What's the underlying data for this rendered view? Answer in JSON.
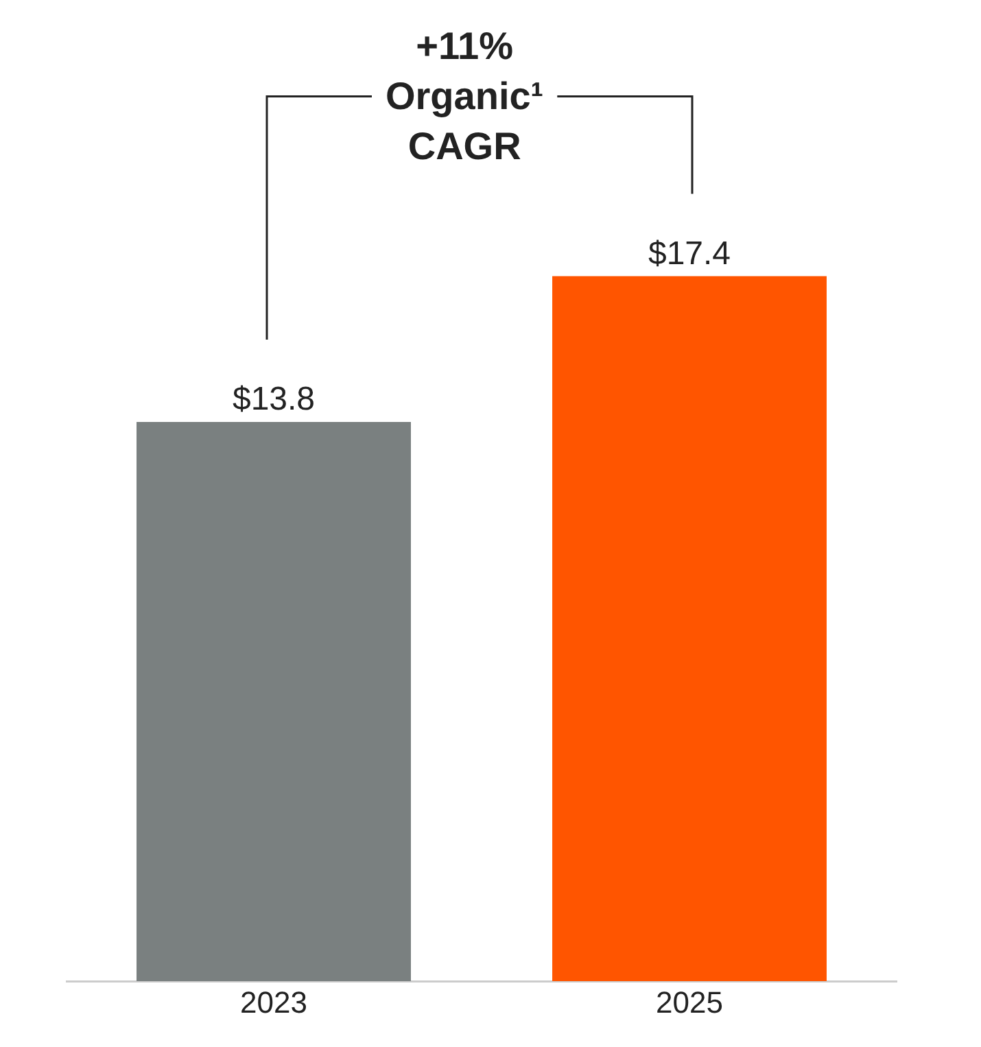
{
  "chart_data": {
    "type": "bar",
    "categories": [
      "2023",
      "2025"
    ],
    "values": [
      13.8,
      17.4
    ],
    "colors": [
      "#7a8080",
      "#ff5500"
    ],
    "value_labels": [
      "$13.8",
      "$17.4"
    ],
    "annotations": [
      "+11%\nOrganic¹\nCAGR"
    ],
    "grid": false,
    "legend": false
  }
}
